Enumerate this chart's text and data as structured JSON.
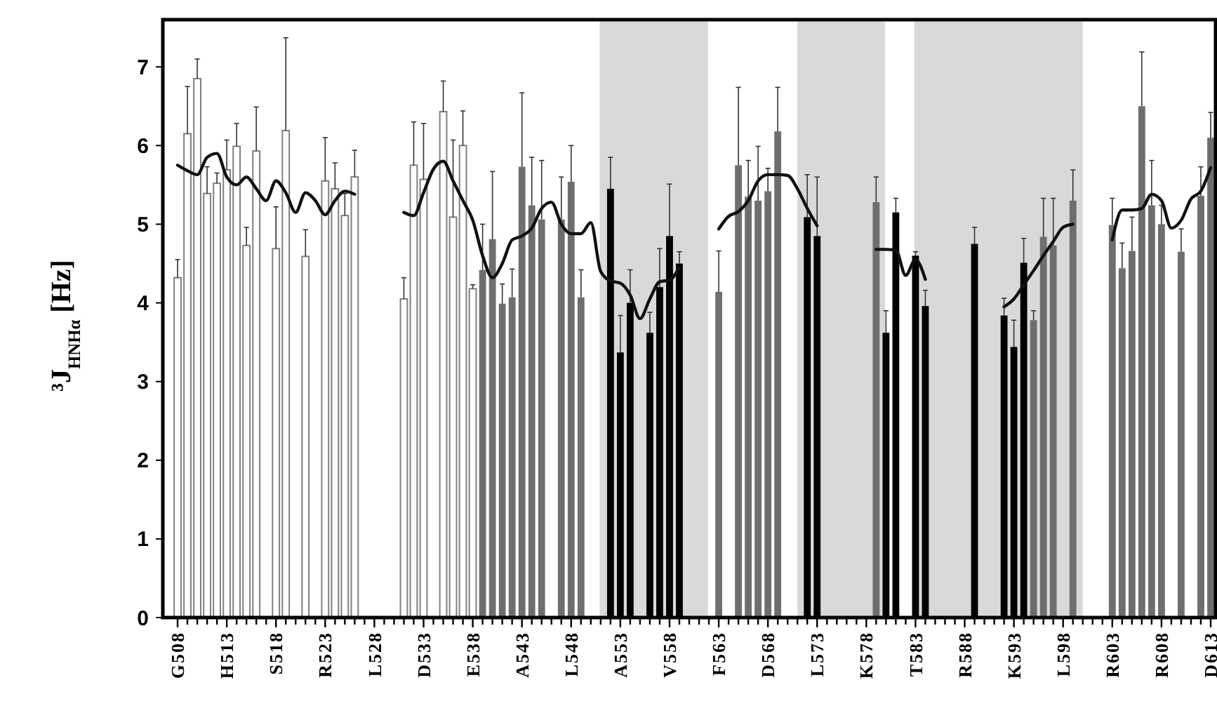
{
  "chart_data": {
    "type": "bar",
    "ylabel": "³J$_{HNHα}$ [Hz]",
    "categories": [
      "G508",
      null,
      null,
      null,
      null,
      "H513",
      null,
      null,
      null,
      null,
      "S518",
      null,
      null,
      null,
      null,
      "R523",
      null,
      null,
      null,
      null,
      "L528",
      null,
      null,
      null,
      null,
      "D533",
      null,
      null,
      null,
      null,
      "E538",
      null,
      null,
      null,
      null,
      "A543",
      null,
      null,
      null,
      null,
      "L548",
      null,
      null,
      null,
      null,
      "A553",
      null,
      null,
      null,
      null,
      "V558",
      null,
      null,
      null,
      null,
      "F563",
      null,
      null,
      null,
      null,
      "D568",
      null,
      null,
      null,
      null,
      "L573",
      null,
      null,
      null,
      null,
      "K578",
      null,
      null,
      null,
      null,
      "T583",
      null,
      null,
      null,
      null,
      "R588",
      null,
      null,
      null,
      null,
      "K593",
      null,
      null,
      null,
      null,
      "L598",
      null,
      null,
      null,
      null,
      "R603",
      null,
      null,
      null,
      null,
      "R608",
      null,
      null,
      null,
      null,
      "D613"
    ],
    "ylim": [
      0,
      7.6
    ],
    "yticks": [
      0,
      1,
      2,
      3,
      4,
      5,
      6,
      7
    ],
    "series": [
      {
        "color": "#ffffff",
        "values": [
          4.32,
          6.15,
          6.85,
          5.39,
          5.52,
          5.69,
          5.99,
          4.73,
          5.93,
          null,
          4.69,
          6.19,
          null,
          4.59,
          null,
          5.55,
          5.45,
          5.11,
          5.6,
          null,
          null,
          null,
          null,
          4.05,
          5.75,
          5.57,
          null,
          6.43,
          5.09,
          6.0,
          4.18,
          null,
          null,
          null,
          null,
          null,
          null,
          null,
          null,
          null,
          null,
          null,
          null,
          null,
          null,
          null,
          null,
          null,
          null,
          null,
          null,
          null,
          null,
          null,
          null,
          null,
          null,
          null,
          null,
          null,
          null,
          null,
          null,
          null,
          null,
          null,
          null,
          null,
          null,
          null,
          null,
          null,
          null,
          null,
          null,
          null,
          null,
          null,
          null,
          null,
          null,
          null,
          null,
          null,
          null,
          null,
          null,
          null,
          null,
          null,
          null,
          null,
          null,
          null,
          null,
          null,
          null,
          null,
          null,
          null,
          null,
          null,
          null,
          null,
          null,
          null
        ],
        "errors": [
          [
            4.32,
            4.55
          ],
          [
            6.15,
            6.75
          ],
          [
            6.85,
            7.1
          ],
          [
            5.39,
            5.73
          ],
          [
            5.52,
            5.65
          ],
          [
            5.69,
            6.07
          ],
          [
            5.99,
            6.28
          ],
          [
            4.73,
            4.96
          ],
          [
            5.93,
            6.49
          ],
          null,
          [
            4.69,
            5.22
          ],
          [
            6.19,
            7.37
          ],
          null,
          [
            4.59,
            4.93
          ],
          null,
          [
            5.55,
            6.1
          ],
          [
            5.45,
            5.78
          ],
          [
            5.11,
            5.39
          ],
          [
            5.6,
            5.94
          ],
          null,
          null,
          null,
          null,
          [
            4.05,
            4.32
          ],
          [
            5.75,
            6.3
          ],
          [
            5.57,
            6.28
          ],
          null,
          [
            6.43,
            6.82
          ],
          [
            5.09,
            6.07
          ],
          [
            6.0,
            6.44
          ],
          [
            4.18,
            4.23
          ],
          null,
          null,
          null,
          null,
          null,
          null,
          null,
          null,
          null,
          null,
          null,
          null,
          null,
          null,
          null,
          null,
          null,
          null,
          null,
          null,
          null,
          null,
          null,
          null,
          null,
          null,
          null,
          null,
          null,
          null,
          null,
          null,
          null,
          null,
          null,
          null,
          null,
          null,
          null,
          null,
          null,
          null,
          null,
          null,
          null,
          null,
          null,
          null,
          null,
          null,
          null,
          null,
          null,
          null,
          null,
          null,
          null,
          null,
          null,
          null,
          null,
          null,
          null,
          null,
          null,
          null,
          null,
          null,
          null,
          null,
          null,
          null,
          null,
          null,
          null
        ]
      },
      {
        "color": "#6e6e6e",
        "values": [
          null,
          null,
          null,
          null,
          null,
          null,
          null,
          null,
          null,
          null,
          null,
          null,
          null,
          null,
          null,
          null,
          null,
          null,
          null,
          null,
          null,
          null,
          null,
          null,
          null,
          null,
          null,
          null,
          null,
          null,
          null,
          4.42,
          4.81,
          3.99,
          4.07,
          5.73,
          5.24,
          5.06,
          null,
          5.06,
          5.54,
          4.07,
          null,
          null,
          null,
          null,
          null,
          null,
          null,
          null,
          null,
          null,
          null,
          null,
          null,
          4.14,
          null,
          5.75,
          5.35,
          5.3,
          5.42,
          6.18,
          null,
          null,
          null,
          null,
          null,
          null,
          null,
          null,
          null,
          5.28,
          null,
          null,
          null,
          null,
          null,
          null,
          null,
          null,
          null,
          null,
          null,
          null,
          null,
          null,
          null,
          3.78,
          4.84,
          4.73,
          null,
          5.3,
          null,
          null,
          null,
          4.99,
          4.44,
          4.66,
          6.5,
          5.24,
          5.0,
          null,
          4.65,
          null,
          5.36,
          6.1
        ],
        "errors": [
          null,
          null,
          null,
          null,
          null,
          null,
          null,
          null,
          null,
          null,
          null,
          null,
          null,
          null,
          null,
          null,
          null,
          null,
          null,
          null,
          null,
          null,
          null,
          null,
          null,
          null,
          null,
          null,
          null,
          null,
          null,
          [
            4.42,
            5.0
          ],
          [
            4.81,
            5.67
          ],
          [
            3.99,
            4.24
          ],
          [
            4.07,
            4.43
          ],
          [
            5.73,
            6.67
          ],
          [
            5.24,
            5.85
          ],
          [
            5.06,
            5.81
          ],
          null,
          [
            5.06,
            5.6
          ],
          [
            5.54,
            6.0
          ],
          [
            4.07,
            4.42
          ],
          null,
          null,
          null,
          null,
          null,
          null,
          null,
          null,
          null,
          null,
          null,
          null,
          null,
          [
            4.14,
            4.66
          ],
          null,
          [
            5.75,
            6.74
          ],
          [
            5.35,
            5.81
          ],
          [
            5.3,
            5.99
          ],
          [
            5.42,
            5.71
          ],
          [
            6.18,
            6.74
          ],
          null,
          null,
          null,
          null,
          null,
          null,
          null,
          null,
          null,
          [
            5.28,
            5.6
          ],
          null,
          null,
          null,
          null,
          null,
          null,
          null,
          null,
          null,
          null,
          null,
          null,
          null,
          null,
          null,
          [
            3.78,
            3.9
          ],
          [
            4.84,
            5.33
          ],
          [
            4.73,
            5.33
          ],
          null,
          [
            5.3,
            5.69
          ],
          null,
          null,
          null,
          [
            4.99,
            5.33
          ],
          [
            4.44,
            4.76
          ],
          [
            4.66,
            5.09
          ],
          [
            6.5,
            7.19
          ],
          [
            5.24,
            5.81
          ],
          [
            5.0,
            5.24
          ],
          null,
          [
            4.65,
            4.94
          ],
          null,
          [
            5.36,
            5.73
          ],
          [
            6.1,
            6.42
          ]
        ]
      },
      {
        "color": "#000000",
        "values": [
          null,
          null,
          null,
          null,
          null,
          null,
          null,
          null,
          null,
          null,
          null,
          null,
          null,
          null,
          null,
          null,
          null,
          null,
          null,
          null,
          null,
          null,
          null,
          null,
          null,
          null,
          null,
          null,
          null,
          null,
          null,
          null,
          null,
          null,
          null,
          null,
          null,
          null,
          null,
          null,
          null,
          null,
          null,
          null,
          5.45,
          3.37,
          4.0,
          null,
          3.62,
          4.2,
          4.85,
          4.5,
          null,
          null,
          null,
          null,
          null,
          null,
          null,
          null,
          null,
          null,
          null,
          null,
          5.09,
          4.85,
          null,
          null,
          null,
          null,
          null,
          null,
          3.62,
          5.15,
          null,
          4.6,
          3.96,
          null,
          null,
          null,
          null,
          4.75,
          null,
          null,
          3.84,
          3.44,
          4.51,
          null,
          null,
          null,
          null,
          null,
          null,
          null,
          null,
          null,
          null,
          null,
          null,
          null,
          null,
          null,
          null,
          null,
          null,
          null
        ],
        "errors": [
          null,
          null,
          null,
          null,
          null,
          null,
          null,
          null,
          null,
          null,
          null,
          null,
          null,
          null,
          null,
          null,
          null,
          null,
          null,
          null,
          null,
          null,
          null,
          null,
          null,
          null,
          null,
          null,
          null,
          null,
          null,
          null,
          null,
          null,
          null,
          null,
          null,
          null,
          null,
          null,
          null,
          null,
          null,
          null,
          [
            5.45,
            5.85
          ],
          [
            3.37,
            3.84
          ],
          [
            4.0,
            4.42
          ],
          null,
          [
            3.62,
            3.88
          ],
          [
            4.2,
            4.69
          ],
          [
            4.85,
            5.51
          ],
          [
            4.5,
            4.65
          ],
          null,
          null,
          null,
          null,
          null,
          null,
          null,
          null,
          null,
          null,
          null,
          null,
          [
            5.09,
            5.63
          ],
          [
            4.85,
            5.6
          ],
          null,
          null,
          null,
          null,
          null,
          null,
          [
            3.62,
            3.9
          ],
          [
            5.15,
            5.33
          ],
          null,
          [
            4.6,
            4.65
          ],
          [
            3.96,
            4.16
          ],
          null,
          null,
          null,
          null,
          [
            4.75,
            4.96
          ],
          null,
          null,
          [
            3.84,
            4.06
          ],
          [
            3.44,
            3.78
          ],
          [
            4.51,
            4.82
          ],
          null,
          null,
          null,
          null,
          null,
          null,
          null,
          null,
          null,
          null,
          null,
          null,
          null,
          null,
          null,
          null,
          null,
          null,
          null
        ]
      },
      {
        "type": "line",
        "color": "#111111",
        "values": [
          5.75,
          5.68,
          5.63,
          5.85,
          5.9,
          5.6,
          5.5,
          5.6,
          5.45,
          5.3,
          5.55,
          5.4,
          5.15,
          5.4,
          5.3,
          5.12,
          5.3,
          5.42,
          5.38,
          null,
          null,
          null,
          null,
          5.15,
          5.11,
          5.4,
          5.7,
          5.8,
          5.55,
          5.3,
          5.05,
          4.6,
          4.32,
          4.5,
          4.8,
          4.85,
          4.95,
          5.2,
          5.28,
          5.0,
          4.88,
          4.88,
          5.02,
          4.4,
          4.28,
          4.25,
          4.1,
          3.8,
          4.05,
          4.27,
          4.29,
          4.45,
          null,
          null,
          null,
          4.94,
          5.1,
          5.16,
          5.3,
          5.55,
          5.63,
          5.63,
          5.62,
          5.45,
          5.2,
          4.98,
          null,
          null,
          null,
          null,
          null,
          4.68,
          4.68,
          4.67,
          4.35,
          4.55,
          4.3,
          null,
          null,
          null,
          null,
          null,
          null,
          null,
          3.95,
          4.05,
          4.23,
          4.41,
          4.6,
          4.78,
          4.96,
          5.0,
          null,
          null,
          null,
          4.8,
          5.18,
          5.18,
          5.2,
          5.38,
          5.3,
          4.95,
          5.05,
          5.32,
          5.42,
          5.72
        ]
      }
    ]
  }
}
